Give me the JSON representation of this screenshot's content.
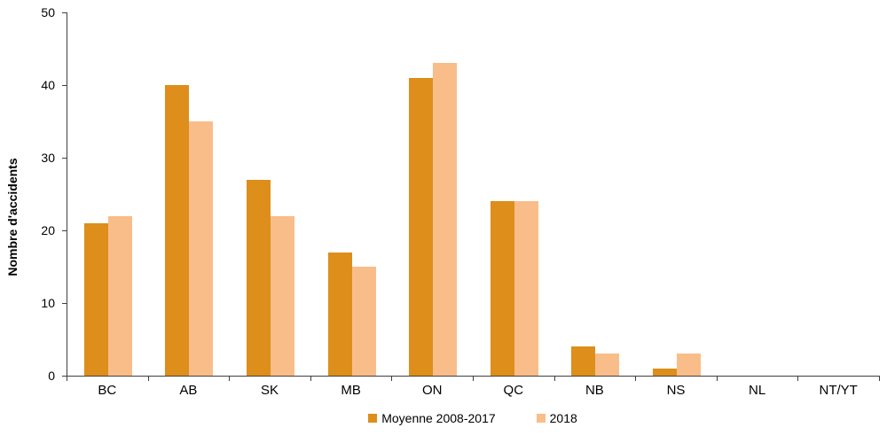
{
  "chart_data": {
    "type": "bar",
    "title": "",
    "xlabel": "",
    "ylabel": "Nombre d'accidents",
    "ylim": [
      0,
      50
    ],
    "yticks": [
      0,
      10,
      20,
      30,
      40,
      50
    ],
    "grid": false,
    "legend_position": "bottom-center",
    "categories": [
      "BC",
      "AB",
      "SK",
      "MB",
      "ON",
      "QC",
      "NB",
      "NS",
      "NL",
      "NT/YT"
    ],
    "series": [
      {
        "name": "Moyenne 2008-2017",
        "color": "#DD8E1B",
        "values": [
          21,
          40,
          27,
          17,
          41,
          24,
          4,
          1,
          0,
          0
        ]
      },
      {
        "name": "2018",
        "color": "#F9BD8A",
        "values": [
          22,
          35,
          22,
          15,
          43,
          24,
          3,
          3,
          0,
          0
        ]
      }
    ],
    "axis_color": "#3f3f3f",
    "text_color": "#000000"
  }
}
